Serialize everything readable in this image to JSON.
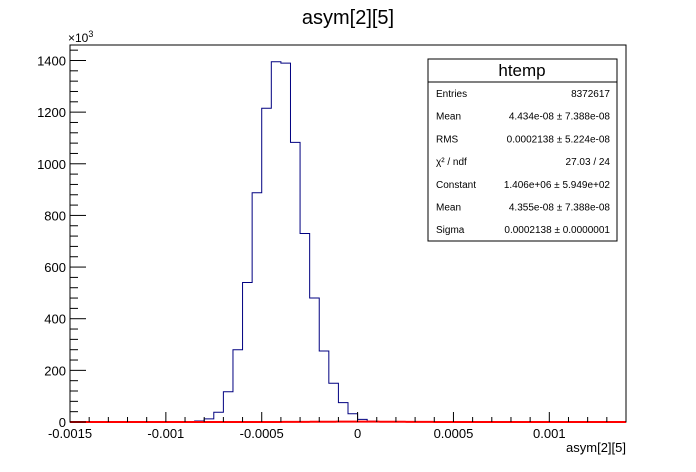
{
  "chart_data": {
    "type": "bar",
    "title": "asym[2][5]",
    "xlabel": "asym[2][5]",
    "ylabel": "",
    "y_exponent_label": "×10",
    "y_exponent_power": "3",
    "xlim": [
      -0.0015,
      0.0014
    ],
    "ylim": [
      0,
      1460
    ],
    "x_ticks": [
      {
        "v": -0.0015,
        "label": "-0.0015"
      },
      {
        "v": -0.001,
        "label": "-0.001"
      },
      {
        "v": -0.0005,
        "label": "-0.0005"
      },
      {
        "v": 0,
        "label": "0"
      },
      {
        "v": 0.0005,
        "label": "0.0005"
      },
      {
        "v": 0.001,
        "label": "0.001"
      }
    ],
    "y_ticks": [
      {
        "v": 0,
        "label": "0"
      },
      {
        "v": 200,
        "label": "200"
      },
      {
        "v": 400,
        "label": "400"
      },
      {
        "v": 600,
        "label": "600"
      },
      {
        "v": 800,
        "label": "800"
      },
      {
        "v": 1000,
        "label": "1000"
      },
      {
        "v": 1200,
        "label": "1200"
      },
      {
        "v": 1400,
        "label": "1400"
      }
    ],
    "histogram": {
      "bin_width": 5e-05,
      "bin_edges_start": -0.0015,
      "values": [
        0,
        0,
        0,
        0,
        0,
        0,
        0,
        0,
        0,
        0,
        0,
        0.5,
        2,
        4,
        12,
        38,
        117,
        280,
        540,
        888,
        1215,
        1395,
        1390,
        1083,
        730,
        480,
        275,
        150,
        75,
        32,
        10,
        3,
        0.5,
        0,
        0,
        0,
        0,
        0,
        0
      ]
    },
    "fit": {
      "function": "gaus",
      "constant": 1406,
      "mean": 4.355e-08,
      "sigma": 0.0002138,
      "color": "#ff0000"
    },
    "histogram_color": "#000080",
    "grid": false,
    "legend_position": "top-right"
  },
  "stats_box": {
    "title": "htemp",
    "rows": [
      {
        "label": "Entries",
        "value": "8372617"
      },
      {
        "label": "Mean",
        "value": "4.434e-08 ± 7.388e-08"
      },
      {
        "label": "RMS",
        "value": "0.0002138 ± 5.224e-08"
      },
      {
        "label": "χ² / ndf",
        "value": "27.03 / 24"
      },
      {
        "label": "Constant",
        "value": "1.406e+06 ± 5.949e+02"
      },
      {
        "label": "Mean",
        "value": "4.355e-08 ± 7.388e-08"
      },
      {
        "label": "Sigma",
        "value": "0.0002138 ± 0.0000001"
      }
    ]
  }
}
